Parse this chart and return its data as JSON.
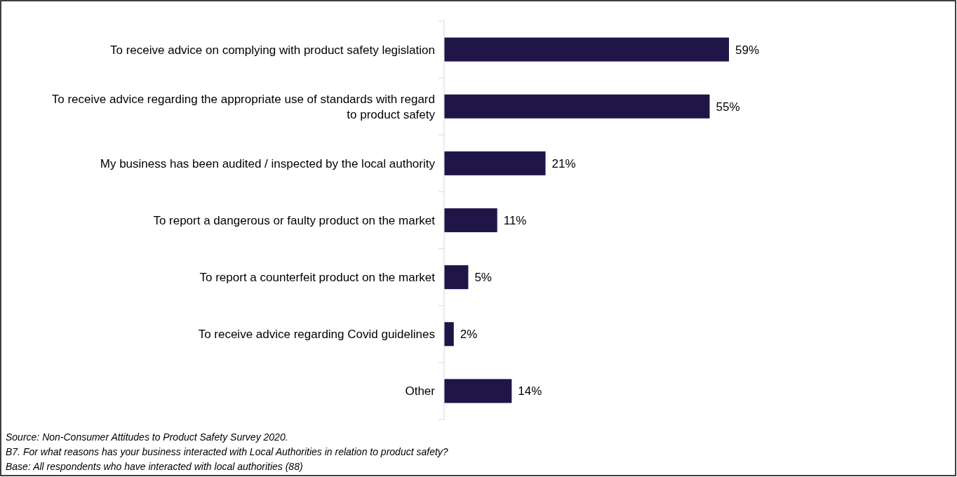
{
  "chart_data": {
    "type": "bar",
    "orientation": "horizontal",
    "categories": [
      "To receive advice on complying with product safety legislation",
      "To receive advice regarding the appropriate use of standards with regard to product safety",
      "My business has been audited / inspected by the local authority",
      "To report a dangerous or faulty product on the market",
      "To report a counterfeit product on the market",
      "To receive advice regarding Covid guidelines",
      "Other"
    ],
    "values": [
      59,
      55,
      21,
      11,
      5,
      2,
      14
    ],
    "value_labels": [
      "59%",
      "55%",
      "21%",
      "11%",
      "5%",
      "2%",
      "14%"
    ],
    "color": "#201547",
    "annotations": [
      "Source: Non-Consumer Attitudes to Product Safety Survey 2020.",
      "B7. For what reasons has your business interacted with  Local Authorities in relation to product safety?",
      "Base: All respondents who  have interacted with  local authorities (88)"
    ]
  }
}
